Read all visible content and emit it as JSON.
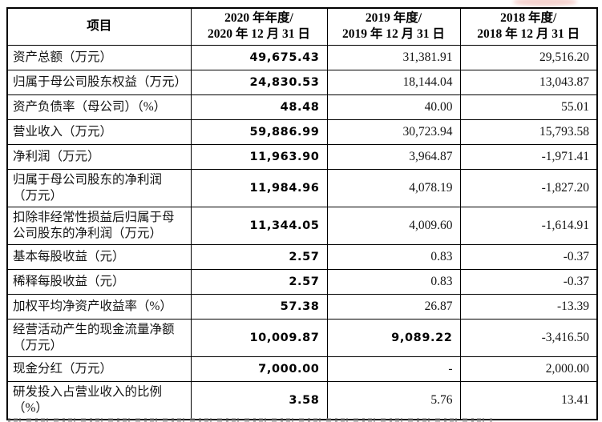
{
  "colors": {
    "background": "#ffffff",
    "border": "#000000",
    "text": "#141414",
    "smudge_pink": "#f2c5c0"
  },
  "table": {
    "header": {
      "item": "项目",
      "y2020": "2020 年年度/\n2020 年 12 月 31 日",
      "y2019": "2019 年度/\n2019 年 12 月 31 日",
      "y2018": "2018 年度/\n2018 年 12 月 31 日"
    },
    "rows": [
      {
        "label": "资产总额（万元）",
        "v2020": "49,675.43",
        "v2019": "31,381.91",
        "v2018": "29,516.20"
      },
      {
        "label": "归属于母公司股东权益（万元）",
        "v2020": "24,830.53",
        "v2019": "18,144.04",
        "v2018": "13,043.87"
      },
      {
        "label": "资产负债率（母公司）（%）",
        "v2020": "48.48",
        "v2019": "40.00",
        "v2018": "55.01"
      },
      {
        "label": "营业收入（万元）",
        "v2020": "59,886.99",
        "v2019": "30,723.94",
        "v2018": "15,793.58"
      },
      {
        "label": "净利润（万元）",
        "v2020": "11,963.90",
        "v2019": "3,964.87",
        "v2018": "-1,971.41"
      },
      {
        "label": "归属于母公司股东的净利润\n（万元）",
        "v2020": "11,984.96",
        "v2019": "4,078.19",
        "v2018": "-1,827.20"
      },
      {
        "label": "扣除非经常性损益后归属于母\n公司股东的净利润（万元）",
        "v2020": "11,344.05",
        "v2019": "4,009.60",
        "v2018": "-1,614.91"
      },
      {
        "label": "基本每股收益（元）",
        "v2020": "2.57",
        "v2019": "0.83",
        "v2018": "-0.37"
      },
      {
        "label": "稀释每股收益（元）",
        "v2020": "2.57",
        "v2019": "0.83",
        "v2018": "-0.37"
      },
      {
        "label": "加权平均净资产收益率（%）",
        "v2020": "57.38",
        "v2019": "26.87",
        "v2018": "-13.39"
      },
      {
        "label": "经营活动产生的现金流量净额\n（万元）",
        "v2020": "10,009.87",
        "v2019": "9,089.22",
        "v2018": "-3,416.50",
        "bold_2019": true
      },
      {
        "label": "现金分红（万元）",
        "v2020": "7,000.00",
        "v2019": "-",
        "v2018": "2,000.00"
      },
      {
        "label": "研发投入占营业收入的比例\n（%）",
        "v2020": "3.58",
        "v2019": "5.76",
        "v2018": "13.41"
      }
    ]
  }
}
